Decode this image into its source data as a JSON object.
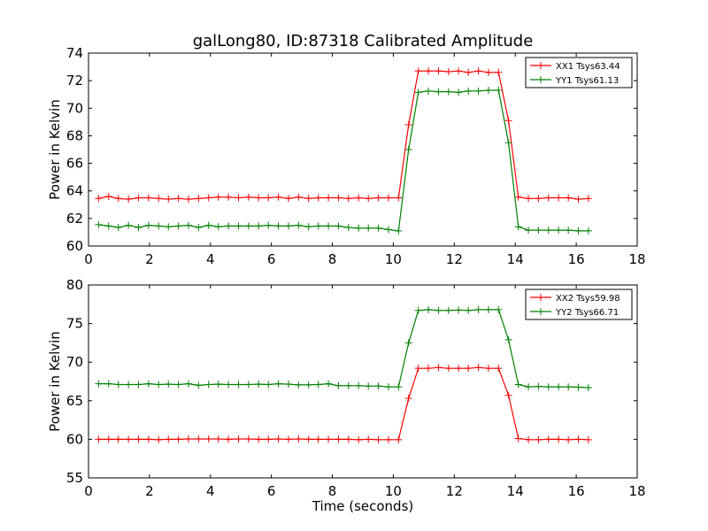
{
  "chart_data": [
    {
      "type": "line",
      "title": "galLong80, ID:87318 Calibrated Amplitude",
      "xlabel": "",
      "ylabel": "Power in Kelvin",
      "xlim": [
        0,
        18
      ],
      "ylim": [
        60,
        74
      ],
      "xticks": [
        "0",
        "2",
        "4",
        "6",
        "8",
        "10",
        "12",
        "14",
        "16",
        "18"
      ],
      "yticks": [
        "60",
        "62",
        "64",
        "66",
        "68",
        "70",
        "72",
        "74"
      ],
      "legend_position": "top-right",
      "grid": false,
      "x": [
        0.33,
        0.66,
        0.98,
        1.31,
        1.64,
        1.97,
        2.3,
        2.62,
        2.95,
        3.28,
        3.61,
        3.94,
        4.26,
        4.59,
        4.92,
        5.25,
        5.58,
        5.9,
        6.23,
        6.56,
        6.89,
        7.22,
        7.54,
        7.87,
        8.2,
        8.53,
        8.86,
        9.18,
        9.51,
        9.84,
        10.17,
        10.5,
        10.82,
        11.15,
        11.48,
        11.81,
        12.14,
        12.46,
        12.79,
        13.12,
        13.45,
        13.78,
        14.1,
        14.43,
        14.76,
        15.09,
        15.42,
        15.74,
        16.07,
        16.4
      ],
      "series": [
        {
          "name": "XX1 Tsys63.44",
          "color": "#ff0000",
          "values": [
            63.45,
            63.6,
            63.45,
            63.4,
            63.5,
            63.5,
            63.45,
            63.4,
            63.45,
            63.4,
            63.45,
            63.5,
            63.55,
            63.55,
            63.5,
            63.55,
            63.5,
            63.5,
            63.55,
            63.45,
            63.55,
            63.45,
            63.5,
            63.5,
            63.5,
            63.45,
            63.5,
            63.45,
            63.5,
            63.5,
            63.5,
            68.8,
            72.7,
            72.7,
            72.7,
            72.65,
            72.7,
            72.6,
            72.7,
            72.6,
            72.6,
            69.1,
            63.55,
            63.45,
            63.45,
            63.5,
            63.5,
            63.5,
            63.4,
            63.45
          ]
        },
        {
          "name": "YY1 Tsys61.13",
          "color": "#008000",
          "values": [
            61.55,
            61.45,
            61.35,
            61.5,
            61.35,
            61.5,
            61.45,
            61.4,
            61.45,
            61.5,
            61.35,
            61.5,
            61.4,
            61.45,
            61.45,
            61.45,
            61.45,
            61.5,
            61.45,
            61.45,
            61.5,
            61.4,
            61.45,
            61.45,
            61.45,
            61.35,
            61.3,
            61.3,
            61.3,
            61.2,
            61.1,
            67.0,
            71.15,
            71.25,
            71.2,
            71.2,
            71.15,
            71.25,
            71.25,
            71.3,
            71.3,
            67.5,
            61.4,
            61.15,
            61.15,
            61.15,
            61.15,
            61.15,
            61.1,
            61.1
          ]
        }
      ]
    },
    {
      "type": "line",
      "title": "",
      "xlabel": "Time (seconds)",
      "ylabel": "Power in Kelvin",
      "xlim": [
        0,
        18
      ],
      "ylim": [
        55,
        80
      ],
      "xticks": [
        "0",
        "2",
        "4",
        "6",
        "8",
        "10",
        "12",
        "14",
        "16",
        "18"
      ],
      "yticks": [
        "55",
        "60",
        "65",
        "70",
        "75",
        "80"
      ],
      "legend_position": "top-right",
      "grid": false,
      "x": [
        0.33,
        0.66,
        0.98,
        1.31,
        1.64,
        1.97,
        2.3,
        2.62,
        2.95,
        3.28,
        3.61,
        3.94,
        4.26,
        4.59,
        4.92,
        5.25,
        5.58,
        5.9,
        6.23,
        6.56,
        6.89,
        7.22,
        7.54,
        7.87,
        8.2,
        8.53,
        8.86,
        9.18,
        9.51,
        9.84,
        10.17,
        10.5,
        10.82,
        11.15,
        11.48,
        11.81,
        12.14,
        12.46,
        12.79,
        13.12,
        13.45,
        13.78,
        14.1,
        14.43,
        14.76,
        15.09,
        15.42,
        15.74,
        16.07,
        16.4
      ],
      "series": [
        {
          "name": "XX2 Tsys59.98",
          "color": "#ff0000",
          "values": [
            60.0,
            60.0,
            60.0,
            60.0,
            60.0,
            60.0,
            59.95,
            60.0,
            60.0,
            60.05,
            60.05,
            60.05,
            60.05,
            60.0,
            60.05,
            60.05,
            60.0,
            60.0,
            60.05,
            60.0,
            60.05,
            60.0,
            60.0,
            60.0,
            60.0,
            60.0,
            59.95,
            60.0,
            59.95,
            59.95,
            59.95,
            65.3,
            69.2,
            69.2,
            69.3,
            69.2,
            69.2,
            69.2,
            69.3,
            69.2,
            69.2,
            65.7,
            60.1,
            59.95,
            59.95,
            60.0,
            60.0,
            59.95,
            60.0,
            59.95
          ]
        },
        {
          "name": "YY2 Tsys66.71",
          "color": "#008000",
          "values": [
            67.2,
            67.2,
            67.1,
            67.1,
            67.1,
            67.2,
            67.1,
            67.15,
            67.1,
            67.2,
            67.0,
            67.1,
            67.15,
            67.1,
            67.1,
            67.1,
            67.15,
            67.1,
            67.2,
            67.15,
            67.05,
            67.05,
            67.1,
            67.2,
            66.95,
            66.95,
            66.95,
            66.9,
            66.9,
            66.8,
            66.8,
            72.5,
            76.7,
            76.8,
            76.7,
            76.7,
            76.75,
            76.7,
            76.8,
            76.8,
            76.8,
            72.9,
            67.1,
            66.8,
            66.85,
            66.8,
            66.8,
            66.8,
            66.75,
            66.7
          ]
        }
      ]
    }
  ]
}
